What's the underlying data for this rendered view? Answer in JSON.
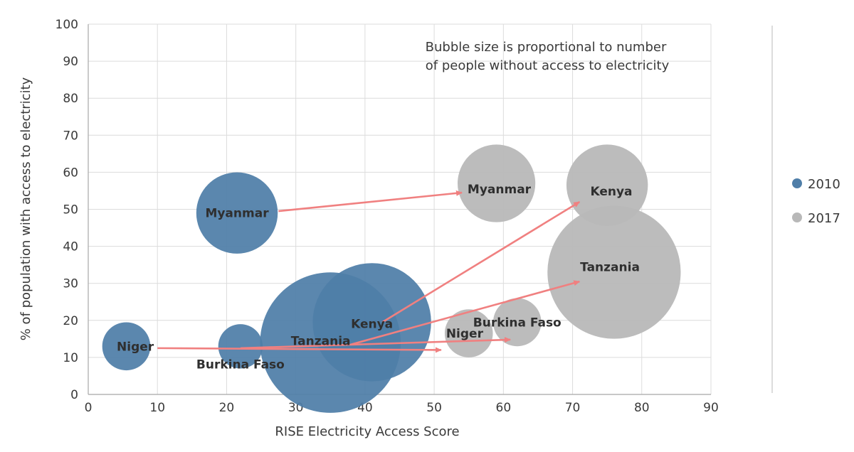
{
  "chart_data": {
    "type": "scatter",
    "xlabel": "RISE Electricity Access Score",
    "ylabel": "% of population with access to electricity",
    "xlim": [
      0,
      90
    ],
    "ylim": [
      0,
      100
    ],
    "xticks": [
      0,
      10,
      20,
      30,
      40,
      50,
      60,
      70,
      80,
      90
    ],
    "yticks": [
      0,
      10,
      20,
      30,
      40,
      50,
      60,
      70,
      80,
      90,
      100
    ],
    "grid": true,
    "legend_position": "right",
    "annotation_lines": [
      "Bubble size is proportional to number",
      "of people without access to electricity"
    ],
    "series": [
      {
        "name": "2010",
        "color": "#4f7ea8",
        "points": [
          {
            "label": "Myanmar",
            "x": 21.5,
            "y": 49,
            "size": 22
          },
          {
            "label": "Niger",
            "x": 5.5,
            "y": 13,
            "size": 13
          },
          {
            "label": "Burkina Faso",
            "x": 22,
            "y": 13,
            "size": 12
          },
          {
            "label": "Tanzania",
            "x": 35,
            "y": 14,
            "size": 38
          },
          {
            "label": "Kenya",
            "x": 41,
            "y": 19.5,
            "size": 32
          }
        ]
      },
      {
        "name": "2017",
        "color": "#b8b8b8",
        "points": [
          {
            "label": "Myanmar",
            "x": 59,
            "y": 57,
            "size": 21
          },
          {
            "label": "Kenya",
            "x": 75,
            "y": 56.5,
            "size": 22
          },
          {
            "label": "Tanzania",
            "x": 76,
            "y": 33,
            "size": 36
          },
          {
            "label": "Burkina Faso",
            "x": 62,
            "y": 19.5,
            "size": 13
          },
          {
            "label": "Niger",
            "x": 55,
            "y": 16.5,
            "size": 13
          }
        ]
      }
    ],
    "arrows": [
      {
        "from": [
          27.5,
          49.5
        ],
        "to": [
          54,
          54.5
        ]
      },
      {
        "from": [
          42.5,
          19.5
        ],
        "to": [
          71,
          52
        ]
      },
      {
        "from": [
          38,
          13.5
        ],
        "to": [
          71,
          30.5
        ]
      },
      {
        "from": [
          10,
          12.5
        ],
        "to": [
          51,
          12
        ]
      },
      {
        "from": [
          22,
          12.5
        ],
        "to": [
          61,
          14.8
        ]
      }
    ],
    "arrow_color": "#f08080"
  }
}
